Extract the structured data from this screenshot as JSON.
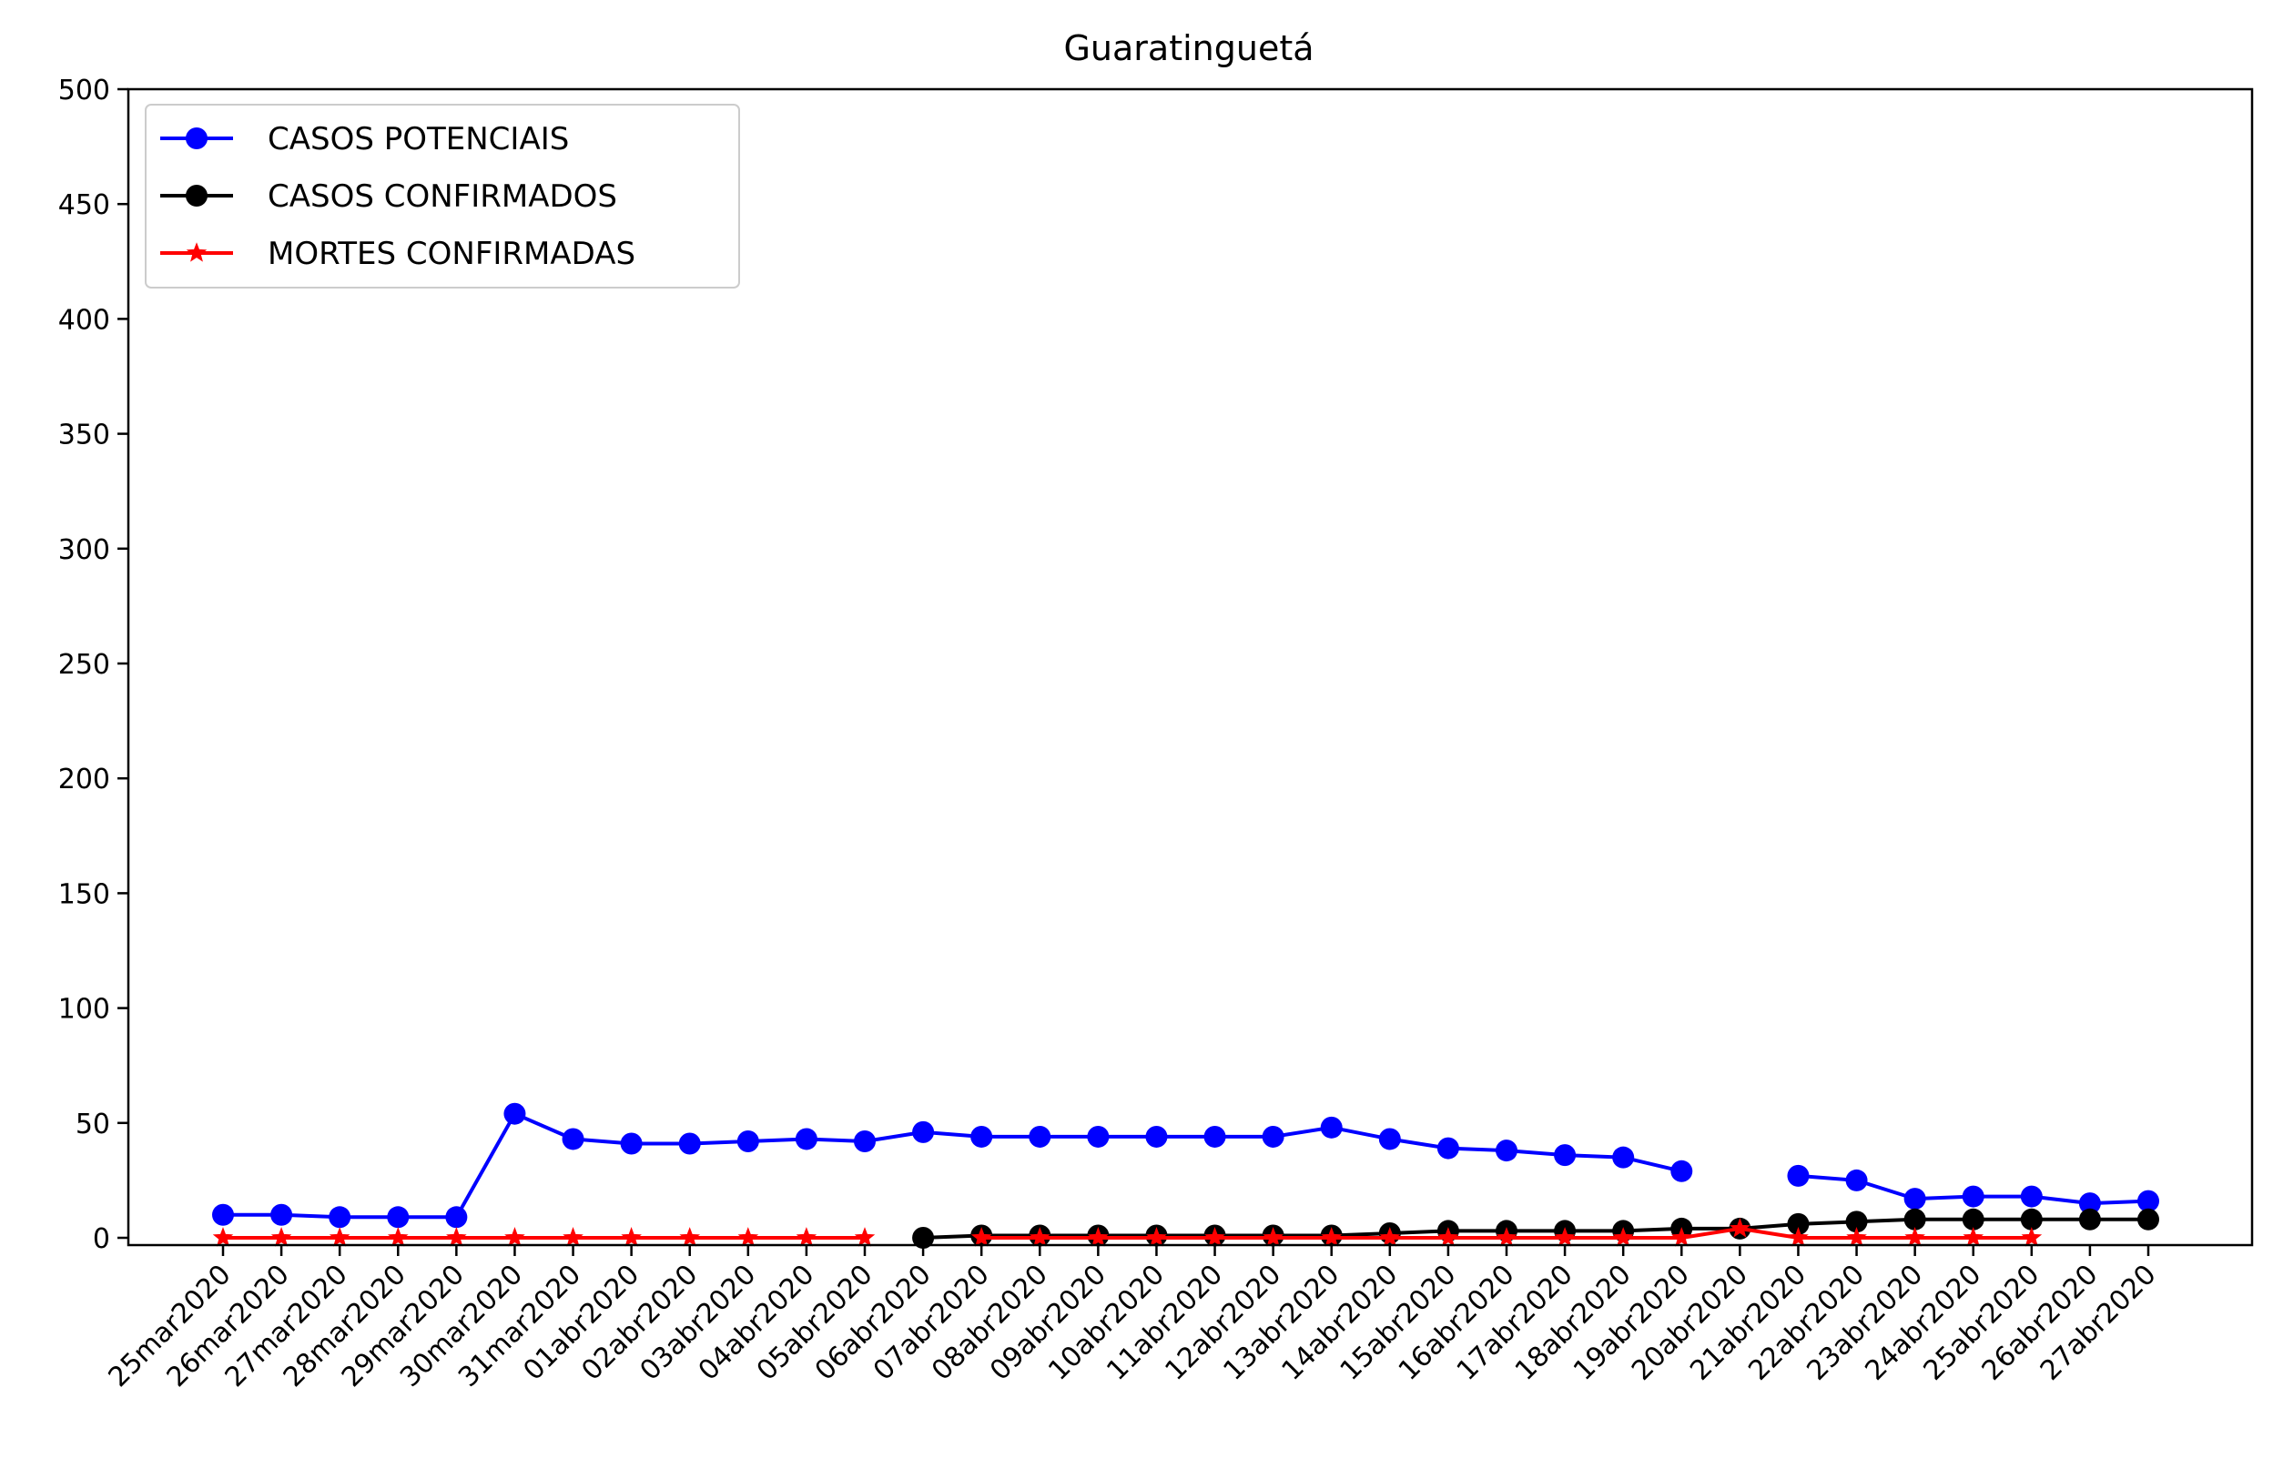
{
  "chart_data": {
    "type": "line",
    "title": "Guaratinguetá",
    "xlabel": "",
    "ylabel": "",
    "ylim": [
      0,
      500
    ],
    "yticks": [
      0,
      50,
      100,
      150,
      200,
      250,
      300,
      350,
      400,
      450,
      500
    ],
    "grid": false,
    "legend_position": "top-left",
    "categories": [
      "25mar2020",
      "26mar2020",
      "27mar2020",
      "28mar2020",
      "29mar2020",
      "30mar2020",
      "31mar2020",
      "01abr2020",
      "02abr2020",
      "03abr2020",
      "04abr2020",
      "05abr2020",
      "06abr2020",
      "07abr2020",
      "08abr2020",
      "09abr2020",
      "10abr2020",
      "11abr2020",
      "12abr2020",
      "13abr2020",
      "14abr2020",
      "15abr2020",
      "16abr2020",
      "17abr2020",
      "18abr2020",
      "19abr2020",
      "20abr2020",
      "21abr2020",
      "22abr2020",
      "23abr2020",
      "24abr2020",
      "25abr2020",
      "26abr2020",
      "27abr2020"
    ],
    "series": [
      {
        "name": "CASOS POTENCIAIS",
        "color": "#0000ff",
        "marker": "circle",
        "values": [
          10,
          10,
          9,
          9,
          9,
          54,
          43,
          41,
          41,
          42,
          43,
          42,
          46,
          44,
          44,
          44,
          44,
          44,
          44,
          48,
          43,
          39,
          38,
          36,
          35,
          29,
          null,
          27,
          25,
          17,
          18,
          18,
          15,
          16
        ]
      },
      {
        "name": "CASOS CONFIRMADOS",
        "color": "#000000",
        "marker": "circle",
        "values": [
          null,
          null,
          null,
          null,
          null,
          null,
          null,
          null,
          null,
          null,
          null,
          null,
          0,
          1,
          1,
          1,
          1,
          1,
          1,
          1,
          2,
          3,
          3,
          3,
          3,
          4,
          4,
          6,
          7,
          8,
          8,
          8,
          8,
          8
        ]
      },
      {
        "name": "MORTES CONFIRMADAS",
        "color": "#ff0000",
        "marker": "star",
        "values": [
          0,
          0,
          0,
          0,
          0,
          0,
          0,
          0,
          0,
          0,
          0,
          0,
          null,
          0,
          0,
          0,
          0,
          0,
          0,
          0,
          0,
          0,
          0,
          0,
          0,
          0,
          4,
          0,
          0,
          0,
          0,
          0,
          null,
          null
        ]
      }
    ]
  }
}
